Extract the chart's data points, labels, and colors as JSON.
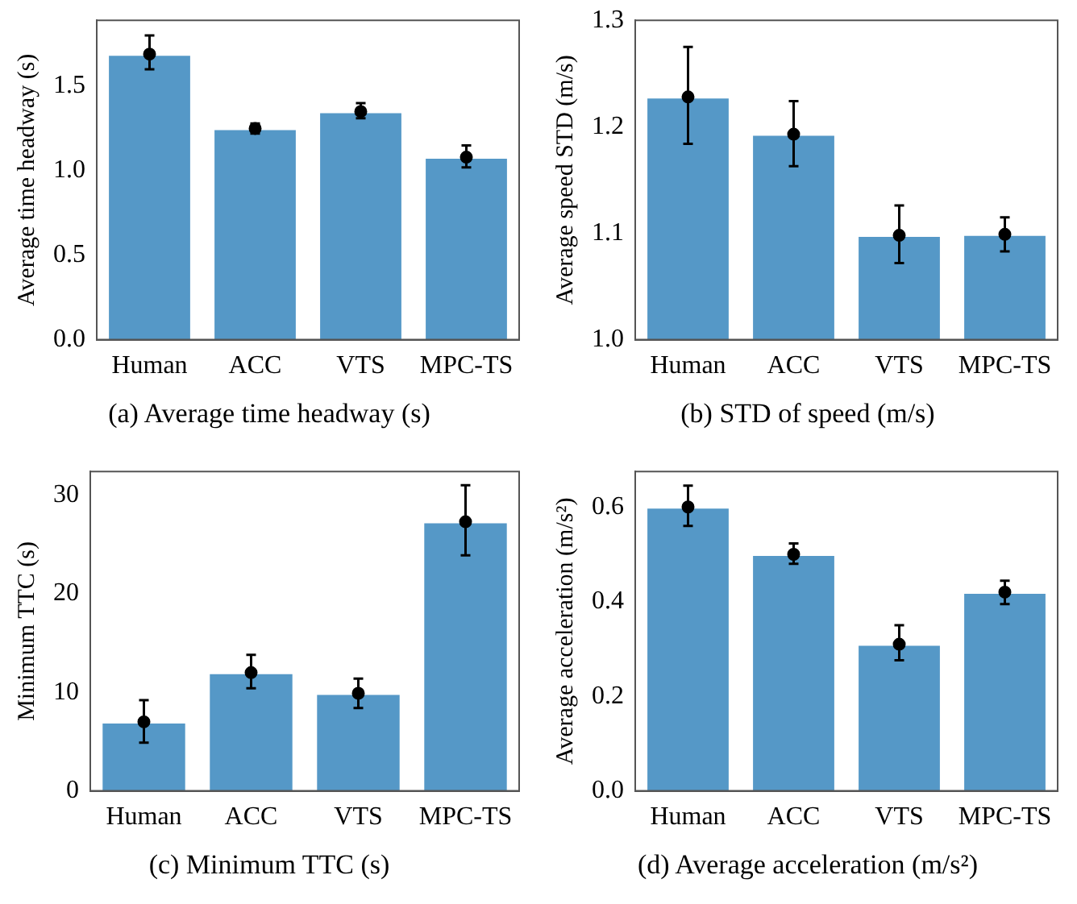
{
  "chart_data": [
    {
      "type": "bar",
      "title": "(a) Average time headway (s)",
      "ylabel": "Average time headway (s)",
      "categories": [
        "Human",
        "ACC",
        "VTS",
        "MPC-TS"
      ],
      "ylim": [
        0,
        1.89
      ],
      "yticks": [
        {
          "value": 0,
          "label": "0.0"
        },
        {
          "value": 0.5,
          "label": "0.5"
        },
        {
          "value": 1,
          "label": "1.0"
        },
        {
          "value": 1.5,
          "label": "1.5"
        }
      ],
      "series": [
        {
          "type": "bar",
          "color": "#5598c7",
          "values": [
            1.69,
            1.25,
            1.35,
            1.08
          ],
          "errors": [
            [
              1.6,
              1.8
            ],
            [
              1.22,
              1.28
            ],
            [
              1.31,
              1.4
            ],
            [
              1.02,
              1.15
            ]
          ]
        },
        {
          "type": "scatter",
          "color": "#000000",
          "marker": "circle",
          "x": [
            "Human",
            "ACC",
            "VTS",
            "MPC-TS"
          ],
          "values": [
            1.69,
            1.25,
            1.35,
            1.08
          ]
        }
      ]
    },
    {
      "type": "bar",
      "title": "(b) STD of speed (m/s)",
      "ylabel": "Average speed STD (m/s)",
      "categories": [
        "Human",
        "ACC",
        "VTS",
        "MPC-TS"
      ],
      "ylim": [
        1,
        1.3
      ],
      "yticks": [
        {
          "value": 1,
          "label": "1.0"
        },
        {
          "value": 1.1,
          "label": "1.1"
        },
        {
          "value": 1.2,
          "label": "1.2"
        },
        {
          "value": 1.3,
          "label": "1.3"
        }
      ],
      "series": [
        {
          "type": "bar",
          "color": "#5598c7",
          "values": [
            1.228,
            1.193,
            1.098,
            1.099
          ],
          "errors": [
            [
              1.184,
              1.275
            ],
            [
              1.163,
              1.224
            ],
            [
              1.072,
              1.126
            ],
            [
              1.083,
              1.115
            ]
          ]
        },
        {
          "type": "scatter",
          "color": "#000000",
          "marker": "circle",
          "x": [
            "Human",
            "ACC",
            "VTS",
            "MPC-TS"
          ],
          "values": [
            1.228,
            1.193,
            1.098,
            1.099
          ]
        }
      ]
    },
    {
      "type": "bar",
      "title": "(c) Minimum TTC (s)",
      "ylabel": "Minimum TTC (s)",
      "categories": [
        "Human",
        "ACC",
        "VTS",
        "MPC-TS"
      ],
      "ylim": [
        0,
        32.4
      ],
      "yticks": [
        0,
        10,
        20,
        30
      ],
      "series": [
        {
          "type": "bar",
          "color": "#5598c7",
          "values": [
            7,
            12,
            9.9,
            27.3
          ],
          "errors": [
            [
              4.9,
              9.2
            ],
            [
              10.4,
              13.8
            ],
            [
              8.4,
              11.4
            ],
            [
              23.9,
              31
            ]
          ]
        },
        {
          "type": "scatter",
          "color": "#000000",
          "marker": "circle",
          "x": [
            "Human",
            "ACC",
            "VTS",
            "MPC-TS"
          ],
          "values": [
            7,
            12,
            9.9,
            27.3
          ]
        }
      ]
    },
    {
      "type": "bar",
      "title": "(d) Average acceleration (m/s²)",
      "ylabel": "Average acceleration (m/s²)",
      "categories": [
        "Human",
        "ACC",
        "VTS",
        "MPC-TS"
      ],
      "ylim": [
        0,
        0.675
      ],
      "yticks": [
        {
          "value": 0,
          "label": "0.0"
        },
        {
          "value": 0.2,
          "label": "0.2"
        },
        {
          "value": 0.4,
          "label": "0.4"
        },
        {
          "value": 0.6,
          "label": "0.6"
        }
      ],
      "series": [
        {
          "type": "bar",
          "color": "#5598c7",
          "values": [
            0.6,
            0.5,
            0.31,
            0.42
          ],
          "errors": [
            [
              0.56,
              0.645
            ],
            [
              0.48,
              0.523
            ],
            [
              0.276,
              0.35
            ],
            [
              0.395,
              0.444
            ]
          ]
        },
        {
          "type": "scatter",
          "color": "#000000",
          "marker": "circle",
          "x": [
            "Human",
            "ACC",
            "VTS",
            "MPC-TS"
          ],
          "values": [
            0.6,
            0.5,
            0.31,
            0.42
          ]
        }
      ]
    }
  ]
}
